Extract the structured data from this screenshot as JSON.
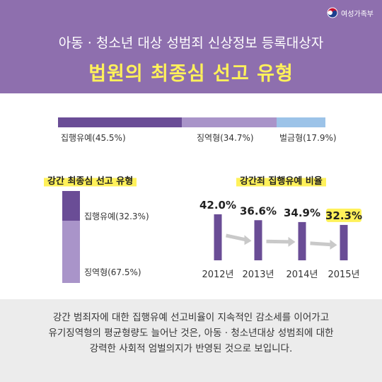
{
  "header": {
    "logo_text": "여성가족부",
    "subtitle": "아동 · 청소년 대상 성범죄 신상정보 등록대상자",
    "title": "법원의 최종심 선고 유형"
  },
  "colors": {
    "header_bg": "#8e6fae",
    "title_yellow": "#fff15a",
    "dark_purple": "#6a4d96",
    "light_purple": "#a994c9",
    "light_blue": "#9cc3e8",
    "footer_bg": "#ececec"
  },
  "chart_data": [
    {
      "type": "bar",
      "orientation": "horizontal-stacked",
      "categories": [
        "집행유예",
        "징역형",
        "벌금형"
      ],
      "values": [
        45.5,
        34.7,
        17.9
      ],
      "labels": [
        "집행유예(45.5%)",
        "징역형(34.7%)",
        "벌금형(17.9%)"
      ]
    },
    {
      "type": "bar",
      "orientation": "vertical-stacked",
      "title": "강간 최종심 선고 유형",
      "categories": [
        "집행유예",
        "징역형"
      ],
      "values": [
        32.3,
        67.5
      ],
      "labels": [
        "집행유예(32.3%)",
        "징역형(67.5%)"
      ]
    },
    {
      "type": "bar",
      "title": "강간죄 집행유예 비율",
      "categories": [
        "2012년",
        "2013년",
        "2014년",
        "2015년"
      ],
      "values": [
        42.0,
        36.6,
        34.9,
        32.3
      ],
      "value_labels": [
        "42.0%",
        "36.6%",
        "34.9%",
        "32.3%"
      ],
      "highlight_index": 3
    }
  ],
  "footer": {
    "lines": [
      "강간 범죄자에 대한 집행유예 선고비율이 지속적인 감소세를 이어가고",
      "유기징역형의 평균형량도 늘어난 것은, 아동 · 청소년대상 성범죄에 대한",
      "강력한 사회적 엄벌의지가 반영된 것으로 보입니다."
    ]
  }
}
